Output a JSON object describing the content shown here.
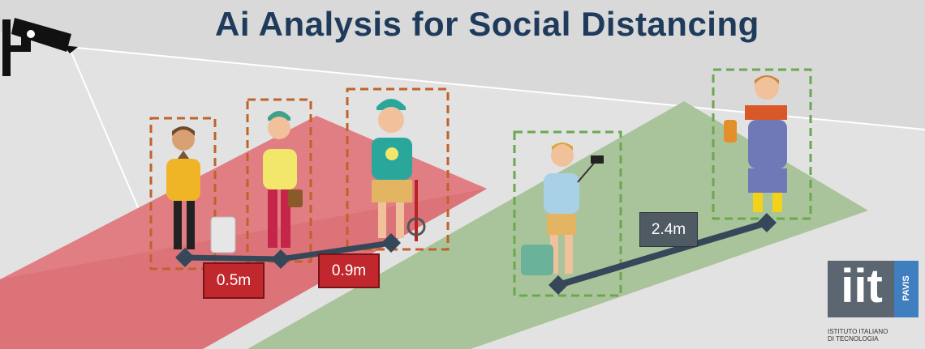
{
  "title": "Ai Analysis for Social Distancing",
  "distances": [
    {
      "label": "0.5m",
      "status": "violation"
    },
    {
      "label": "0.9m",
      "status": "violation"
    },
    {
      "label": "2.4m",
      "status": "safe"
    }
  ],
  "colors": {
    "title": "#1f3b5c",
    "violation_zone": "#e07e84",
    "safe_zone": "#a9c49a",
    "violation_box": "#c0622a",
    "safe_box": "#6aa84f",
    "distance_line": "#37475a",
    "background": "#d9d9d9"
  },
  "logo": {
    "letters": "iit",
    "side_text": "PAVIS",
    "caption_line1": "ISTITUTO ITALIANO",
    "caption_line2": "DI TECNOLOGIA"
  },
  "icons": [
    "cctv-camera-icon",
    "person-figure-icon"
  ]
}
